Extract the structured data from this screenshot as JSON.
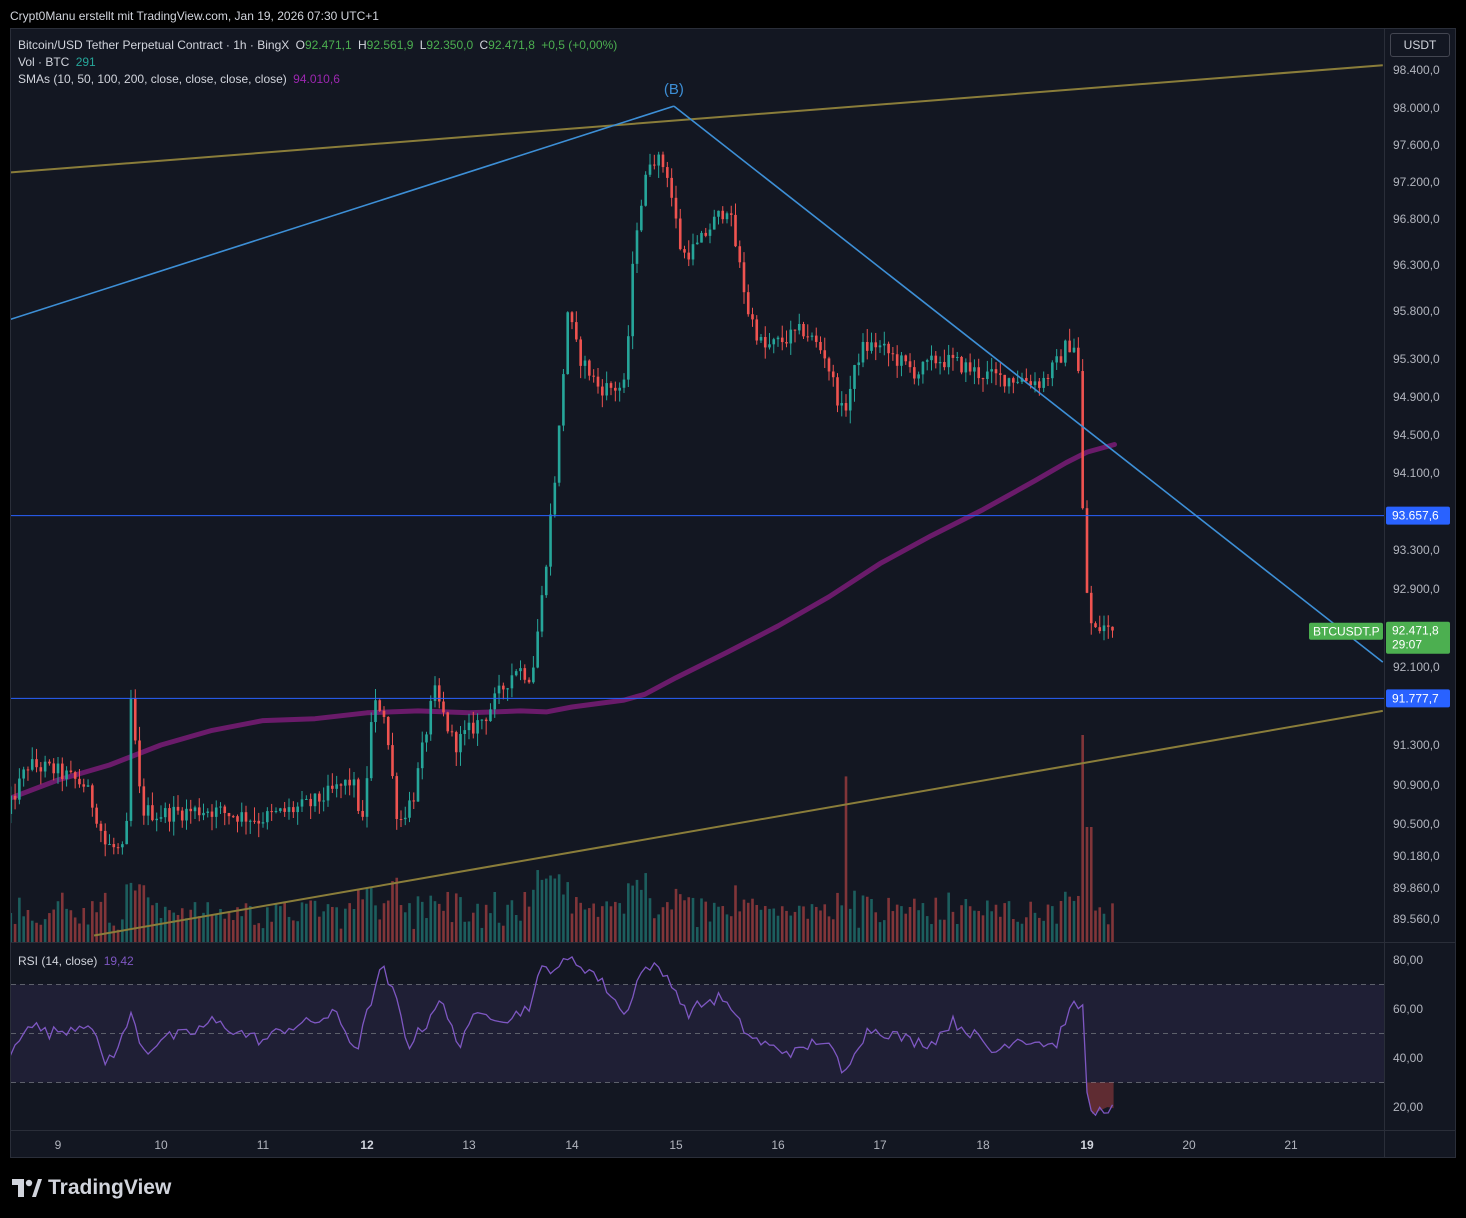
{
  "header": {
    "attribution": "Crypt0Manu erstellt mit TradingView.com, Jan 19, 2026 07:30 UTC+1",
    "currency_button": "USDT"
  },
  "legend": {
    "symbol": "Bitcoin/USD Tether Perpetual Contract · 1h · BingX",
    "o_label": "O",
    "o_value": "92.471,1",
    "h_label": "H",
    "h_value": "92.561,9",
    "l_label": "L",
    "l_value": "92.350,0",
    "c_label": "C",
    "c_value": "92.471,8",
    "change": "+0,5 (+0,00%)",
    "vol_label": "Vol · BTC",
    "vol_value": "291",
    "sma_label": "SMAs (10, 50, 100, 200, close, close, close, close)",
    "sma_value": "94.010,6",
    "rsi_label": "RSI (14, close)",
    "rsi_value": "19,42"
  },
  "branding": {
    "name": "TradingView"
  },
  "colors": {
    "up": "#26a69a",
    "down": "#ef5350",
    "sma": "#6a1b6a",
    "pattern": "#3d8fd6",
    "channel": "#8a7d3a",
    "hline": "#2962ff",
    "rsi": "#7e57c2",
    "last_price": "#4caf50"
  },
  "chart_data": {
    "type": "candlestick",
    "timeframe": "1h",
    "x_ticks": [
      {
        "label": "9",
        "bold": false
      },
      {
        "label": "10",
        "bold": false
      },
      {
        "label": "11",
        "bold": false
      },
      {
        "label": "12",
        "bold": true
      },
      {
        "label": "13",
        "bold": false
      },
      {
        "label": "14",
        "bold": false
      },
      {
        "label": "15",
        "bold": false
      },
      {
        "label": "16",
        "bold": false
      },
      {
        "label": "17",
        "bold": false
      },
      {
        "label": "18",
        "bold": false
      },
      {
        "label": "19",
        "bold": true
      },
      {
        "label": "20",
        "bold": false
      },
      {
        "label": "21",
        "bold": false
      }
    ],
    "x_tick_days": [
      9,
      10,
      11,
      12,
      13,
      14,
      15,
      16,
      17,
      18,
      19,
      20,
      21
    ],
    "x_range_days": [
      8.5,
      21.9
    ],
    "y_ticks": [
      {
        "value": 98400,
        "label": "98.400,0"
      },
      {
        "value": 98000,
        "label": "98.000,0"
      },
      {
        "value": 97600,
        "label": "97.600,0"
      },
      {
        "value": 97200,
        "label": "97.200,0"
      },
      {
        "value": 96800,
        "label": "96.800,0"
      },
      {
        "value": 96300,
        "label": "96.300,0"
      },
      {
        "value": 95800,
        "label": "95.800,0"
      },
      {
        "value": 95300,
        "label": "95.300,0"
      },
      {
        "value": 94900,
        "label": "94.900,0"
      },
      {
        "value": 94500,
        "label": "94.500,0"
      },
      {
        "value": 94100,
        "label": "94.100,0"
      },
      {
        "value": 93300,
        "label": "93.300,0"
      },
      {
        "value": 92900,
        "label": "92.900,0"
      },
      {
        "value": 92100,
        "label": "92.100,0"
      },
      {
        "value": 91300,
        "label": "91.300,0"
      },
      {
        "value": 90900,
        "label": "90.900,0"
      },
      {
        "value": 90500,
        "label": "90.500,0"
      },
      {
        "value": 90180,
        "label": "90.180,0"
      },
      {
        "value": 89860,
        "label": "89.860,0"
      },
      {
        "value": 89560,
        "label": "89.560,0"
      }
    ],
    "price_anchors": [
      [
        98400,
        70
      ],
      [
        98000,
        108
      ],
      [
        97600,
        145
      ],
      [
        97200,
        182
      ],
      [
        96800,
        219
      ],
      [
        96300,
        265
      ],
      [
        95800,
        311
      ],
      [
        95300,
        359
      ],
      [
        94900,
        397
      ],
      [
        94500,
        435
      ],
      [
        94100,
        473
      ],
      [
        93300,
        550
      ],
      [
        92900,
        589
      ],
      [
        92100,
        667
      ],
      [
        91300,
        745
      ],
      [
        90900,
        785
      ],
      [
        90500,
        824
      ],
      [
        90180,
        856
      ],
      [
        89860,
        888
      ],
      [
        89560,
        919
      ]
    ],
    "horizontal_lines": [
      {
        "value": 93657.6,
        "label": "93.657,6"
      },
      {
        "value": 91777.7,
        "label": "91.777,7"
      }
    ],
    "last_price": {
      "symbol": "BTCUSDT.P",
      "value": 92471.8,
      "label": "92.471,8",
      "countdown": "29:07"
    },
    "wave_label": "(B)",
    "wave_lines": [
      {
        "from": [
          8.5,
          95700
        ],
        "to": [
          14.98,
          98020
        ]
      },
      {
        "from": [
          14.98,
          98020
        ],
        "to": [
          21.9,
          92150
        ]
      }
    ],
    "channel_lines": [
      {
        "from": [
          8.5,
          97300
        ],
        "to": [
          21.9,
          98450
        ]
      },
      {
        "from": [
          9.35,
          89400
        ],
        "to": [
          21.9,
          91650
        ]
      }
    ],
    "sma_200": [
      [
        8.5,
        90750
      ],
      [
        9.0,
        90950
      ],
      [
        9.5,
        91100
      ],
      [
        10.0,
        91300
      ],
      [
        10.5,
        91450
      ],
      [
        11.0,
        91550
      ],
      [
        11.5,
        91570
      ],
      [
        12.0,
        91630
      ],
      [
        12.5,
        91650
      ],
      [
        13.0,
        91630
      ],
      [
        13.5,
        91650
      ],
      [
        13.75,
        91640
      ],
      [
        14.0,
        91690
      ],
      [
        14.5,
        91760
      ],
      [
        14.7,
        91820
      ],
      [
        15.0,
        91990
      ],
      [
        15.5,
        92250
      ],
      [
        16.0,
        92520
      ],
      [
        16.5,
        92820
      ],
      [
        17.0,
        93160
      ],
      [
        17.5,
        93450
      ],
      [
        18.0,
        93720
      ],
      [
        18.5,
        94020
      ],
      [
        18.8,
        94210
      ],
      [
        19.0,
        94320
      ],
      [
        19.27,
        94400
      ]
    ],
    "price_path": [
      [
        8.5,
        90450
      ],
      [
        8.6,
        90750
      ],
      [
        8.75,
        91100
      ],
      [
        9.0,
        91050
      ],
      [
        9.3,
        90900
      ],
      [
        9.4,
        90650
      ],
      [
        9.5,
        90300
      ],
      [
        9.7,
        90200
      ],
      [
        9.75,
        91750
      ],
      [
        9.85,
        90650
      ],
      [
        10.0,
        90600
      ],
      [
        10.5,
        90650
      ],
      [
        11.0,
        90550
      ],
      [
        11.5,
        90700
      ],
      [
        11.9,
        90950
      ],
      [
        12.0,
        90500
      ],
      [
        12.1,
        91700
      ],
      [
        12.2,
        91700
      ],
      [
        12.35,
        90500
      ],
      [
        12.5,
        90800
      ],
      [
        12.7,
        91850
      ],
      [
        12.9,
        91300
      ],
      [
        13.2,
        91600
      ],
      [
        13.5,
        92100
      ],
      [
        13.65,
        92000
      ],
      [
        13.75,
        92800
      ],
      [
        13.9,
        94300
      ],
      [
        14.0,
        95800
      ],
      [
        14.1,
        95350
      ],
      [
        14.3,
        95000
      ],
      [
        14.55,
        95000
      ],
      [
        14.65,
        96650
      ],
      [
        14.8,
        97500
      ],
      [
        14.95,
        97350
      ],
      [
        15.1,
        96400
      ],
      [
        15.25,
        96500
      ],
      [
        15.4,
        96750
      ],
      [
        15.55,
        96950
      ],
      [
        15.75,
        95800
      ],
      [
        15.9,
        95400
      ],
      [
        16.1,
        95500
      ],
      [
        16.3,
        95600
      ],
      [
        16.5,
        95350
      ],
      [
        16.68,
        94700
      ],
      [
        16.85,
        95400
      ],
      [
        17.0,
        95450
      ],
      [
        17.2,
        95300
      ],
      [
        17.4,
        95150
      ],
      [
        17.6,
        95300
      ],
      [
        17.8,
        95250
      ],
      [
        18.0,
        95150
      ],
      [
        18.2,
        95100
      ],
      [
        18.4,
        95100
      ],
      [
        18.6,
        95050
      ],
      [
        18.75,
        95250
      ],
      [
        18.85,
        95450
      ],
      [
        18.95,
        95450
      ],
      [
        19.0,
        93700
      ],
      [
        19.05,
        92700
      ],
      [
        19.1,
        92450
      ],
      [
        19.2,
        92520
      ],
      [
        19.27,
        92471
      ]
    ],
    "volume_spikes": [
      [
        16.65,
        0.72
      ],
      [
        18.97,
        0.9
      ],
      [
        19.0,
        0.85
      ],
      [
        19.02,
        0.5
      ]
    ],
    "rsi": {
      "ticks": [
        {
          "value": 80,
          "label": "80,00"
        },
        {
          "value": 60,
          "label": "60,00"
        },
        {
          "value": 40,
          "label": "40,00"
        },
        {
          "value": 20,
          "label": "20,00"
        }
      ],
      "upper_band": 70,
      "middle": 50,
      "lower_band": 30,
      "path": [
        [
          8.5,
          37
        ],
        [
          8.7,
          55
        ],
        [
          8.9,
          50
        ],
        [
          9.1,
          52
        ],
        [
          9.3,
          55
        ],
        [
          9.45,
          38
        ],
        [
          9.6,
          45
        ],
        [
          9.7,
          58
        ],
        [
          9.85,
          42
        ],
        [
          10.0,
          48
        ],
        [
          10.3,
          50
        ],
        [
          10.5,
          55
        ],
        [
          10.8,
          50
        ],
        [
          11.0,
          47
        ],
        [
          11.2,
          52
        ],
        [
          11.5,
          55
        ],
        [
          11.7,
          58
        ],
        [
          11.9,
          43
        ],
        [
          12.05,
          65
        ],
        [
          12.15,
          77
        ],
        [
          12.3,
          62
        ],
        [
          12.4,
          45
        ],
        [
          12.6,
          55
        ],
        [
          12.7,
          65
        ],
        [
          12.9,
          45
        ],
        [
          13.0,
          55
        ],
        [
          13.2,
          58
        ],
        [
          13.4,
          56
        ],
        [
          13.6,
          62
        ],
        [
          13.7,
          76
        ],
        [
          13.9,
          78
        ],
        [
          14.0,
          80
        ],
        [
          14.2,
          75
        ],
        [
          14.4,
          65
        ],
        [
          14.5,
          57
        ],
        [
          14.65,
          74
        ],
        [
          14.75,
          78
        ],
        [
          14.95,
          72
        ],
        [
          15.1,
          58
        ],
        [
          15.25,
          62
        ],
        [
          15.45,
          65
        ],
        [
          15.6,
          55
        ],
        [
          15.75,
          48
        ],
        [
          15.95,
          44
        ],
        [
          16.2,
          42
        ],
        [
          16.4,
          48
        ],
        [
          16.55,
          42
        ],
        [
          16.65,
          32
        ],
        [
          16.75,
          44
        ],
        [
          16.9,
          52
        ],
        [
          17.1,
          50
        ],
        [
          17.3,
          47
        ],
        [
          17.5,
          46
        ],
        [
          17.7,
          55
        ],
        [
          17.9,
          50
        ],
        [
          18.1,
          42
        ],
        [
          18.3,
          48
        ],
        [
          18.5,
          47
        ],
        [
          18.7,
          45
        ],
        [
          18.8,
          57
        ],
        [
          18.9,
          62
        ],
        [
          18.96,
          60
        ],
        [
          19.0,
          26
        ],
        [
          19.05,
          17
        ],
        [
          19.1,
          18
        ],
        [
          19.2,
          20
        ],
        [
          19.27,
          19.4
        ]
      ]
    }
  }
}
